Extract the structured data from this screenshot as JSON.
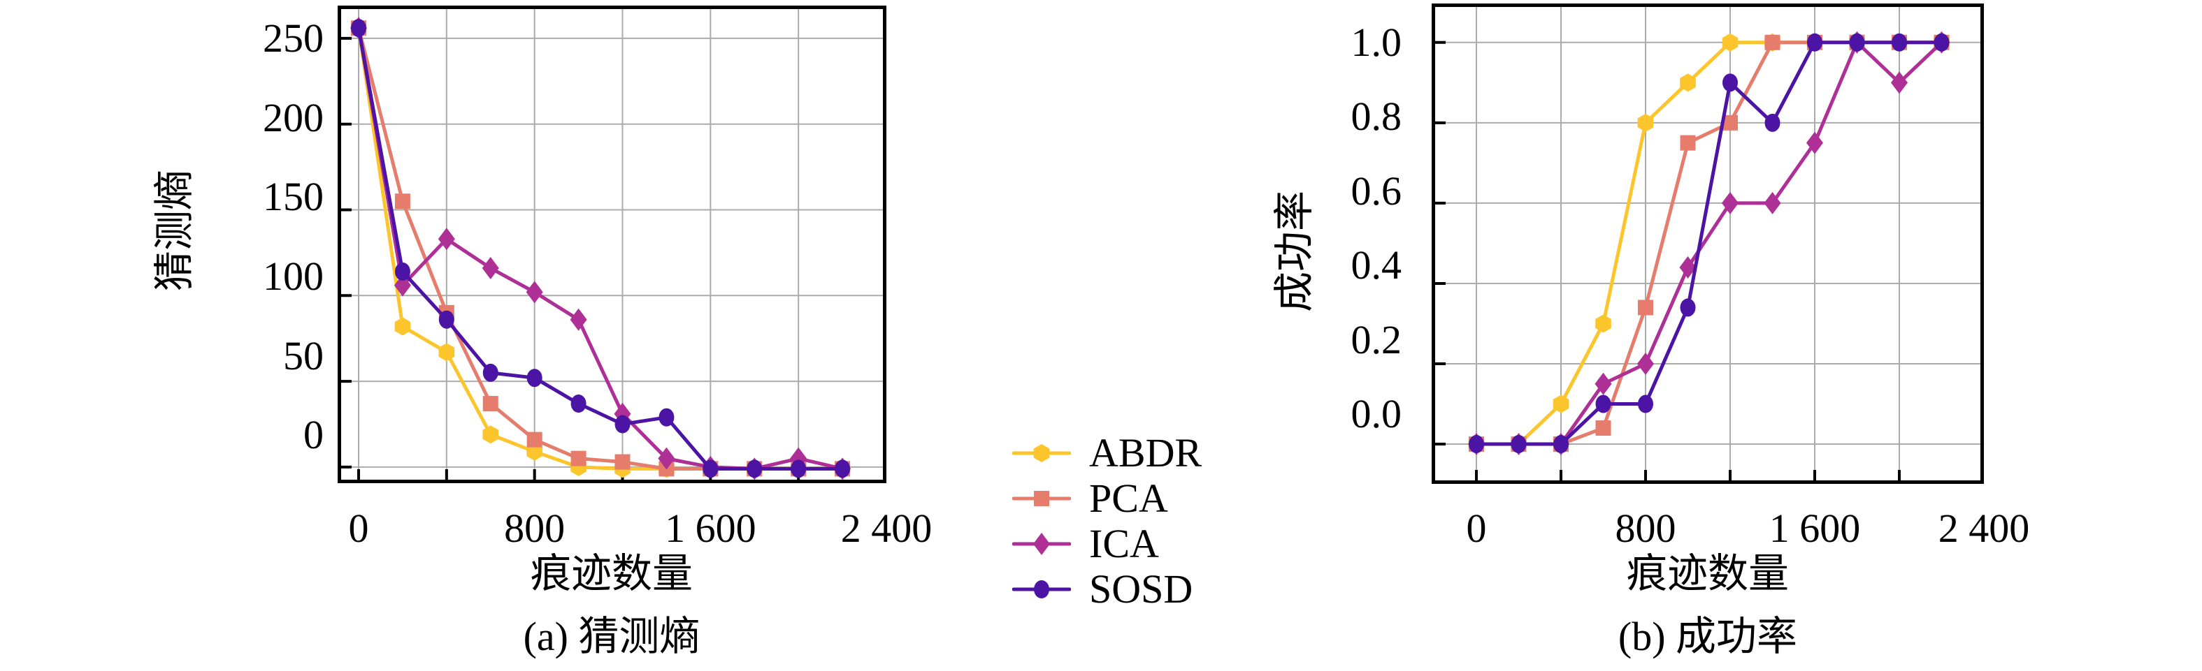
{
  "chart_data": {
    "type": "line",
    "figure_background": "#ffffff",
    "grid_color": "#ababab",
    "axis_color": "#000000",
    "x_common": [
      0,
      200,
      400,
      600,
      800,
      1000,
      1200,
      1400,
      1600,
      1800,
      2000,
      2200
    ],
    "legend": {
      "position": "center-between-charts",
      "entries": [
        {
          "label": "ABDR",
          "color": "#fcc52c",
          "marker": "hexagon"
        },
        {
          "label": "PCA",
          "color": "#e67c6c",
          "marker": "square"
        },
        {
          "label": "ICA",
          "color": "#ae2f96",
          "marker": "diamond"
        },
        {
          "label": "SOSD",
          "color": "#4b14a5",
          "marker": "circle"
        }
      ]
    },
    "charts": [
      {
        "id": "guessing-entropy",
        "caption": "(a) 猜测熵",
        "xlabel": "痕迹数量",
        "ylabel": "猜测熵",
        "grid": true,
        "xlim": [
          -95.4,
          2400
        ],
        "ylim": [
          -9.4,
          269.1
        ],
        "xticks": [
          {
            "value": 0,
            "label": "0"
          },
          {
            "value": 800,
            "label": "800"
          },
          {
            "value": 1600,
            "label": "1 600"
          },
          {
            "value": 2400,
            "label": "2 400"
          }
        ],
        "xtick_marks": [
          0,
          400,
          800,
          1200,
          1600,
          2000,
          2400
        ],
        "xgrid": [
          0,
          400,
          800,
          1200,
          1600,
          2000
        ],
        "yticks": [
          {
            "value": 250,
            "label": "250"
          },
          {
            "value": 200,
            "label": "200"
          },
          {
            "value": 150,
            "label": "150"
          },
          {
            "value": 100,
            "label": "100"
          },
          {
            "value": 50,
            "label": "50"
          },
          {
            "value": 0,
            "label": "0"
          }
        ],
        "series": [
          {
            "name": "ABDR",
            "color": "#fcc52c",
            "marker": "hexagon",
            "values": [
              256,
              82,
              67,
              19,
              9,
              0,
              -1,
              -1,
              -1,
              -1,
              -1,
              -1
            ]
          },
          {
            "name": "PCA",
            "color": "#e67c6c",
            "marker": "square",
            "values": [
              256,
              155,
              90,
              37,
              16,
              5,
              3,
              -1,
              -1,
              -1,
              -1,
              -1
            ]
          },
          {
            "name": "ICA",
            "color": "#ae2f96",
            "marker": "diamond",
            "values": [
              256,
              106,
              133,
              116,
              102,
              86,
              31,
              5,
              0,
              -1,
              5,
              -1
            ]
          },
          {
            "name": "SOSD",
            "color": "#4b14a5",
            "marker": "circle",
            "values": [
              256,
              114,
              86,
              55,
              52,
              37,
              25,
              29,
              -1,
              -1,
              -1,
              -1
            ]
          }
        ]
      },
      {
        "id": "success-rate",
        "caption": "(b) 成功率",
        "xlabel": "痕迹数量",
        "ylabel": "成功率",
        "grid": true,
        "xlim": [
          -211.6,
          2400
        ],
        "ylim": [
          -0.099,
          1.097
        ],
        "xticks": [
          {
            "value": 0,
            "label": "0"
          },
          {
            "value": 800,
            "label": "800"
          },
          {
            "value": 1600,
            "label": "1 600"
          },
          {
            "value": 2400,
            "label": "2 400"
          }
        ],
        "xtick_marks": [
          0,
          400,
          800,
          1200,
          1600,
          2000,
          2400
        ],
        "xgrid": [
          0,
          400,
          800,
          1200,
          1600,
          2000
        ],
        "yticks": [
          {
            "value": 1.0,
            "label": "1.0"
          },
          {
            "value": 0.8,
            "label": "0.8"
          },
          {
            "value": 0.6,
            "label": "0.6"
          },
          {
            "value": 0.4,
            "label": "0.4"
          },
          {
            "value": 0.2,
            "label": "0.2"
          },
          {
            "value": 0.0,
            "label": "0.0"
          }
        ],
        "series": [
          {
            "name": "ABDR",
            "color": "#fcc52c",
            "marker": "hexagon",
            "values": [
              0,
              0,
              0.1,
              0.3,
              0.8,
              0.9,
              1.0,
              1.0,
              1.0,
              1.0,
              1.0,
              1.0
            ]
          },
          {
            "name": "PCA",
            "color": "#e67c6c",
            "marker": "square",
            "values": [
              0,
              0,
              0,
              0.04,
              0.34,
              0.75,
              0.8,
              1.0,
              1.0,
              1.0,
              1.0,
              1.0
            ]
          },
          {
            "name": "ICA",
            "color": "#ae2f96",
            "marker": "diamond",
            "values": [
              0,
              0,
              0,
              0.15,
              0.2,
              0.44,
              0.6,
              0.6,
              0.75,
              1.0,
              0.9,
              1.0
            ]
          },
          {
            "name": "SOSD",
            "color": "#4b14a5",
            "marker": "circle",
            "values": [
              0,
              0,
              0,
              0.1,
              0.1,
              0.34,
              0.9,
              0.8,
              1.0,
              1.0,
              1.0,
              1.0
            ]
          }
        ]
      }
    ]
  }
}
